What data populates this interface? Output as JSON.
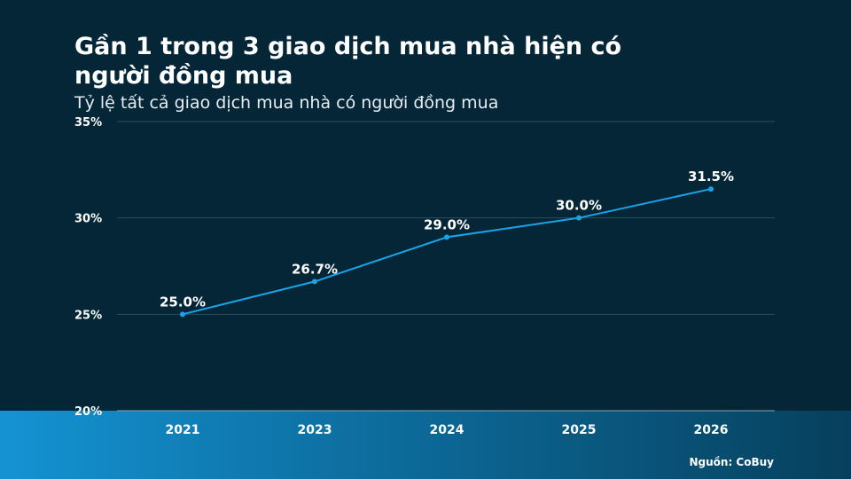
{
  "title": "Gần 1 trong 3 giao dịch mua nhà hiện có người đồng mua",
  "subtitle": "Tỷ lệ tất cả giao dịch mua nhà có người đồng mua",
  "source": "Nguồn: CoBuy",
  "colors": {
    "background": "#052636",
    "line": "#1aa3e8",
    "grid": "#2b4e5e",
    "band_start": "#1493d3",
    "band_end": "#06405d"
  },
  "chart_data": {
    "type": "line",
    "categories": [
      "2021",
      "2023",
      "2024",
      "2025",
      "2026"
    ],
    "values": [
      25.0,
      26.7,
      29.0,
      30.0,
      31.5
    ],
    "data_labels": [
      "25.0%",
      "26.7%",
      "29.0%",
      "30.0%",
      "31.5%"
    ],
    "ylim": [
      20,
      35
    ],
    "yticks": [
      20,
      25,
      30,
      35
    ],
    "ytick_labels": [
      "20%",
      "25%",
      "30%",
      "35%"
    ],
    "grid": true,
    "xlabel": "",
    "ylabel": ""
  }
}
